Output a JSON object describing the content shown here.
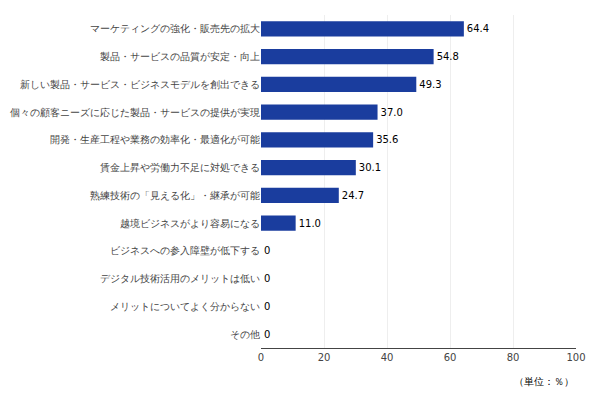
{
  "chart_data": {
    "type": "bar",
    "orientation": "horizontal",
    "categories": [
      "マーケティングの強化・販売先の拡大",
      "製品・サービスの品質が安定・向上",
      "新しい製品・サービス・ビジネスモデルを創出できる",
      "個々の顧客ニーズに応じた製品・サービスの提供が実現",
      "開発・生産工程や業務の効率化・最適化が可能",
      "賃金上昇や労働力不足に対処できる",
      "熟練技術の「見える化」・継承が可能",
      "越境ビジネスがより容易になる",
      "ビジネスへの参入障壁が低下する",
      "デジタル技術活用のメリットは低い",
      "メリットについてよく分からない",
      "その他"
    ],
    "values": [
      64.4,
      54.8,
      49.3,
      37.0,
      35.6,
      30.1,
      24.7,
      11.0,
      0,
      0,
      0,
      0
    ],
    "value_labels": [
      "64.4",
      "54.8",
      "49.3",
      "37.0",
      "35.6",
      "30.1",
      "24.7",
      "11.0",
      "0",
      "0",
      "0",
      "0"
    ],
    "data_labels": true,
    "color": "#1a3d9e",
    "xlim": [
      0,
      100
    ],
    "xticks": [
      0,
      20,
      40,
      60,
      80,
      100
    ],
    "grid": true,
    "annotations": [
      "（単位：％）"
    ]
  }
}
